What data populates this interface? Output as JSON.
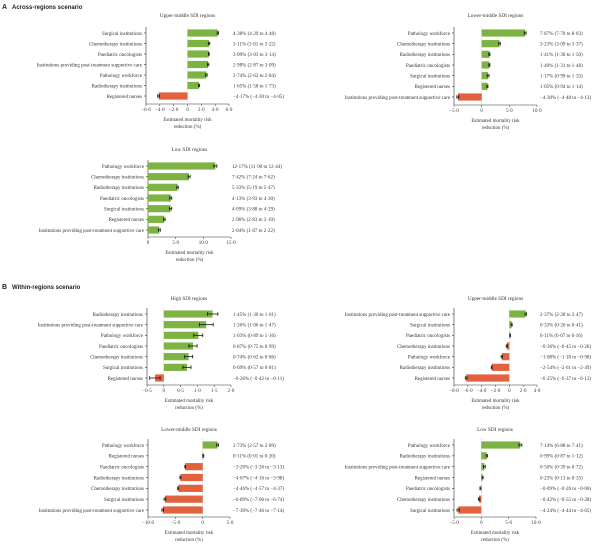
{
  "sections": [
    {
      "letter": "A",
      "title": "Across-regions scenario"
    },
    {
      "letter": "B",
      "title": "Within-regions scenario"
    }
  ],
  "colors": {
    "positive": "#7cb342",
    "negative": "#e2613f",
    "error_bar": "#111111"
  },
  "chart_data": [
    {
      "type": "bar",
      "orientation": "horizontal",
      "section": "A",
      "title": "Upper-middle SDI regions",
      "xlabel": [
        "Estimated mortality risk",
        "reduction (%)"
      ],
      "xlim": [
        -6,
        6
      ],
      "ticks": [
        "−6·0",
        "−4·0",
        "−2·0",
        "0",
        "2·0",
        "4·0",
        "6·0"
      ],
      "tick_values": [
        -6,
        -4,
        -2,
        0,
        2,
        4,
        6
      ],
      "rows": [
        {
          "label": "Surgical institutions",
          "value": 4.38,
          "lo": 4.29,
          "hi": 4.48,
          "text": "4·38% (4·29 to 4·48)"
        },
        {
          "label": "Chemotherapy institutions",
          "value": 3.11,
          "lo": 3.01,
          "hi": 3.22,
          "text": "3·11% (3·01 to 3·22)"
        },
        {
          "label": "Paediatric oncologists",
          "value": 3.09,
          "lo": 3.03,
          "hi": 3.14,
          "text": "3·09% (3·03 to 3·14)"
        },
        {
          "label": "Institutions providing post-treatment supportive care",
          "value": 2.98,
          "lo": 2.87,
          "hi": 3.09,
          "text": "2·98% (2·87 to 3·09)"
        },
        {
          "label": "Pathology workforce",
          "value": 2.74,
          "lo": 2.62,
          "hi": 2.84,
          "text": "2·74% (2·62 to 2·84)"
        },
        {
          "label": "Radiotherapy institutions",
          "value": 1.65,
          "lo": 1.58,
          "hi": 1.73,
          "text": "1·65% (1·58 to 1·73)"
        },
        {
          "label": "Registered nurses",
          "value": -4.17,
          "lo": -4.3,
          "hi": -4.05,
          "text": "−4·17% (−4·30 to −4·05)"
        }
      ]
    },
    {
      "type": "bar",
      "orientation": "horizontal",
      "section": "A",
      "title": "Lower-middle SDI regions",
      "xlabel": [
        "Estimated mortality risk",
        "reduction (%)"
      ],
      "xlim": [
        -5,
        10
      ],
      "ticks": [
        "−5·0",
        "0",
        "5·0",
        "10·0"
      ],
      "tick_values": [
        -5,
        0,
        5,
        10
      ],
      "rows": [
        {
          "label": "Pathology workforce",
          "value": 7.87,
          "lo": 7.7,
          "hi": 8.03,
          "text": "7·87% (7·70 to 8·03)"
        },
        {
          "label": "Chemotherapy institutions",
          "value": 3.23,
          "lo": 3.09,
          "hi": 3.37,
          "text": "3·23% (3·09 to 3·37)"
        },
        {
          "label": "Radiotherapy institutions",
          "value": 1.41,
          "lo": 1.3,
          "hi": 1.5,
          "text": "1·41% (1·30 to 1·50)"
        },
        {
          "label": "Paediatric oncologists",
          "value": 1.4,
          "lo": 1.31,
          "hi": 1.48,
          "text": "1·40% (1·31 to 1·48)"
        },
        {
          "label": "Surgical institutions",
          "value": 1.17,
          "lo": 0.99,
          "hi": 1.33,
          "text": "1·17% (0·99 to 1·33)"
        },
        {
          "label": "Registered nurses",
          "value": 1.05,
          "lo": 0.94,
          "hi": 1.14,
          "text": "1·05% (0·94 to 1·14)"
        },
        {
          "label": "Institutions providing post-treatment supportive care",
          "value": -4.3,
          "lo": -4.48,
          "hi": -4.13,
          "text": "−4·30% (−4·48 to −4·13)"
        }
      ]
    },
    {
      "type": "bar",
      "orientation": "horizontal",
      "section": "A",
      "title": "Low SDI regions",
      "xlabel": [
        "Estimated mortality risk",
        "reduction (%)"
      ],
      "xlim": [
        0,
        15
      ],
      "ticks": [
        "0",
        "5·0",
        "10·0",
        "15·0"
      ],
      "tick_values": [
        0,
        5,
        10,
        15
      ],
      "rows": [
        {
          "label": "Pathology workforce",
          "value": 12.17,
          "lo": 11.9,
          "hi": 12.44,
          "text": "12·17% (11·90 to 12·44)"
        },
        {
          "label": "Chemotherapy institutions",
          "value": 7.42,
          "lo": 7.24,
          "hi": 7.62,
          "text": "7·42% (7·24 to 7·62)"
        },
        {
          "label": "Radiotherapy institutions",
          "value": 5.33,
          "lo": 5.19,
          "hi": 5.47,
          "text": "5·33% (5·19 to 5·47)"
        },
        {
          "label": "Paediatric oncologists",
          "value": 4.13,
          "lo": 3.93,
          "hi": 4.3,
          "text": "4·13% (3·93 to 4·30)"
        },
        {
          "label": "Surgical institutions",
          "value": 4.09,
          "lo": 3.88,
          "hi": 4.29,
          "text": "4·09% (3·88 to 4·29)"
        },
        {
          "label": "Registered nurses",
          "value": 2.96,
          "lo": 2.83,
          "hi": 3.1,
          "text": "2·96% (2·83 to 3·10)"
        },
        {
          "label": "Institutions providing post-treatment supportive care",
          "value": 2.04,
          "lo": 1.87,
          "hi": 2.22,
          "text": "2·04% (1·87 to 2·22)"
        }
      ]
    },
    {
      "type": "bar",
      "orientation": "horizontal",
      "section": "B",
      "title": "High SDI regions",
      "xlabel": [
        "Estimated mortality risk",
        "reduction (%)"
      ],
      "xlim": [
        -0.5,
        2.0
      ],
      "ticks": [
        "−0·5",
        "0",
        "0·5",
        "1·0",
        "1·5",
        "2·0"
      ],
      "tick_values": [
        -0.5,
        0,
        0.5,
        1,
        1.5,
        2
      ],
      "rows": [
        {
          "label": "Radiotherapy institutions",
          "value": 1.45,
          "lo": 1.3,
          "hi": 1.61,
          "text": "1·45% (1·30 to 1·61)"
        },
        {
          "label": "Institutions providing post-treatment supportive care",
          "value": 1.26,
          "lo": 1.06,
          "hi": 1.47,
          "text": "1·26% (1·06 to 1·47)"
        },
        {
          "label": "Pathology workforce",
          "value": 1.03,
          "lo": 0.89,
          "hi": 1.16,
          "text": "1·03% (0·89 to 1·16)"
        },
        {
          "label": "Paediatric oncologists",
          "value": 0.87,
          "lo": 0.75,
          "hi": 0.99,
          "text": "0·87% (0·75 to 0·99)"
        },
        {
          "label": "Chemotherapy institutions",
          "value": 0.74,
          "lo": 0.62,
          "hi": 0.86,
          "text": "0·74% (0·62 to 0·86)"
        },
        {
          "label": "Surgical institutions",
          "value": 0.69,
          "lo": 0.57,
          "hi": 0.81,
          "text": "0·69% (0·57 to 0·81)"
        },
        {
          "label": "Registered nurses",
          "value": -0.26,
          "lo": -0.42,
          "hi": -0.11,
          "text": "−0·26% (−0·42 to −0·11)"
        }
      ]
    },
    {
      "type": "bar",
      "orientation": "horizontal",
      "section": "B",
      "title": "Upper-middle SDI regions",
      "xlabel": [
        "Estimated mortality risk",
        "reduction (%)"
      ],
      "xlim": [
        -8,
        4
      ],
      "ticks": [
        "−8·0",
        "−6·0",
        "−4·0",
        "−2·0",
        "0",
        "2·0",
        "4·0"
      ],
      "tick_values": [
        -8,
        -6,
        -4,
        -2,
        0,
        2,
        4
      ],
      "rows": [
        {
          "label": "Institutions providing post-treatment supportive care",
          "value": 2.37,
          "lo": 2.28,
          "hi": 2.47,
          "text": "2·37% (2·28 to 2·47)"
        },
        {
          "label": "Surgical institutions",
          "value": 0.33,
          "lo": 0.26,
          "hi": 0.41,
          "text": "0·33% (0·26 to 0·41)"
        },
        {
          "label": "Paediatric oncologists",
          "value": 0.11,
          "lo": 0.07,
          "hi": 0.16,
          "text": "0·11% (0·07 to 0·16)"
        },
        {
          "label": "Chemotherapy institutions",
          "value": -0.36,
          "lo": -0.45,
          "hi": -0.26,
          "text": "−0·36% (−0·45 to −0·26)"
        },
        {
          "label": "Pathology workforce",
          "value": -1.08,
          "lo": -1.18,
          "hi": -0.98,
          "text": "−1·08% (−1·18 to −0·98)"
        },
        {
          "label": "Radiotherapy institutions",
          "value": -2.54,
          "lo": -2.61,
          "hi": -2.49,
          "text": "−2·54% (−2·61 to −2·49)"
        },
        {
          "label": "Registered nurses",
          "value": -6.25,
          "lo": -6.37,
          "hi": -6.13,
          "text": "−6·25% (−6·37 to −6·13)"
        }
      ]
    },
    {
      "type": "bar",
      "orientation": "horizontal",
      "section": "B",
      "title": "Lower-middle SDI regions",
      "xlabel": [
        "Estimated mortality risk",
        "reduction (%)"
      ],
      "xlim": [
        -10,
        5
      ],
      "ticks": [
        "−10·0",
        "−5·0",
        "0",
        "5·0"
      ],
      "tick_values": [
        -10,
        -5,
        0,
        5
      ],
      "rows": [
        {
          "label": "Pathology workforce",
          "value": 2.73,
          "lo": 2.57,
          "hi": 2.89,
          "text": "2·73% (2·57 to 2·89)"
        },
        {
          "label": "Registered nurses",
          "value": 0.11,
          "lo": 0.01,
          "hi": 0.2,
          "text": "0·11% (0·01 to 0·20)"
        },
        {
          "label": "Paediatric oncologists",
          "value": -3.2,
          "lo": -3.26,
          "hi": -3.13,
          "text": "−3·20% (−3·26 to −3·13)"
        },
        {
          "label": "Radiotherapy institutions",
          "value": -4.07,
          "lo": -4.16,
          "hi": -3.98,
          "text": "−4·07% (−4·16 to −3·98)"
        },
        {
          "label": "Chemotherapy institutions",
          "value": -4.46,
          "lo": -4.57,
          "hi": -4.37,
          "text": "−4·46% (−4·57 to −4·37)"
        },
        {
          "label": "Surgical institutions",
          "value": -6.89,
          "lo": -7.06,
          "hi": -6.74,
          "text": "−6·89% (−7·06 to −6·74)"
        },
        {
          "label": "Institutions providing post-treatment supportive care",
          "value": -7.3,
          "lo": -7.46,
          "hi": -7.14,
          "text": "−7·30% (−7·46 to −7·14)"
        }
      ]
    },
    {
      "type": "bar",
      "orientation": "horizontal",
      "section": "B",
      "title": "Low SDI regions",
      "xlabel": [
        "Estimated mortality risk",
        "reduction (%)"
      ],
      "xlim": [
        -5,
        10
      ],
      "ticks": [
        "−5·0",
        "0",
        "5·0",
        "10·0"
      ],
      "tick_values": [
        -5,
        0,
        5,
        10
      ],
      "rows": [
        {
          "label": "Pathology workforce",
          "value": 7.14,
          "lo": 6.88,
          "hi": 7.41,
          "text": "7·14% (6·88 to 7·41)"
        },
        {
          "label": "Radiotherapy institutions",
          "value": 0.99,
          "lo": 0.87,
          "hi": 1.12,
          "text": "0·99% (0·87 to 1·12)"
        },
        {
          "label": "Institutions providing post-treatment supportive care",
          "value": 0.56,
          "lo": 0.39,
          "hi": 0.72,
          "text": "0·56% (0·39 to 0·72)"
        },
        {
          "label": "Registered nurses",
          "value": 0.23,
          "lo": 0.13,
          "hi": 0.33,
          "text": "0·23% (0·13 to 0·33)"
        },
        {
          "label": "Paediatric oncologists",
          "value": -0.09,
          "lo": -0.26,
          "hi": -0.06,
          "text": "−0·09% (−0·26 to −0·06)"
        },
        {
          "label": "Chemotherapy institutions",
          "value": -0.42,
          "lo": -0.55,
          "hi": -0.28,
          "text": "−0·42% (−0·55 to −0·28)"
        },
        {
          "label": "Surgical institutions",
          "value": -4.24,
          "lo": -4.44,
          "hi": -4.05,
          "text": "−4·24% (−4·44 to −4·05)"
        }
      ]
    }
  ]
}
